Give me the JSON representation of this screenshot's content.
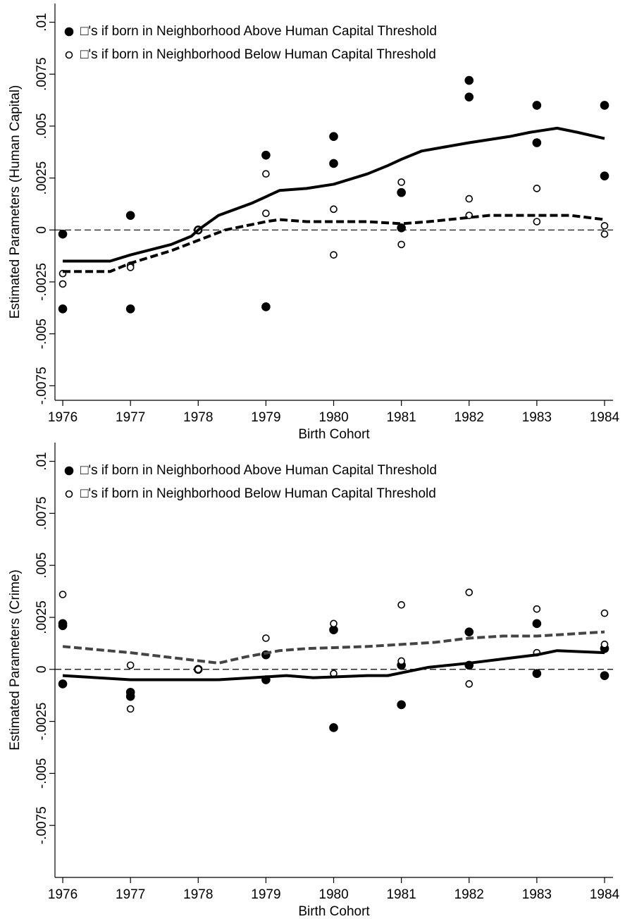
{
  "chart_data": [
    {
      "type": "scatter",
      "y_label": "Estimated Parameters (Human Capital)",
      "x_label": "Birth Cohort",
      "xlim": [
        1975.885,
        1984.125
      ],
      "xticks": [
        1976,
        1977,
        1978,
        1979,
        1980,
        1981,
        1982,
        1983,
        1984
      ],
      "ylim": [
        -0.0082,
        0.0109
      ],
      "yticks": [
        {
          "value": -0.0075,
          "label": "-.0075"
        },
        {
          "value": -0.005,
          "label": "-.005"
        },
        {
          "value": -0.0025,
          "label": "-.0025"
        },
        0,
        {
          "value": 0.0025,
          "label": ".0025"
        },
        {
          "value": 0.005,
          "label": ".005"
        },
        {
          "value": 0.0075,
          "label": ".0075"
        },
        {
          "value": 0.01,
          "label": ".01"
        }
      ],
      "reference_line": 0,
      "legend": "top-left",
      "series": [
        {
          "name": "□'s if born in Neighborhood Above Human Capital Threshold",
          "type": "scatter",
          "marker": "filled",
          "color": "#000000",
          "x": [
            1976,
            1976,
            1977,
            1977,
            1978,
            1979,
            1979,
            1980,
            1980,
            1981,
            1981,
            1982,
            1982,
            1983,
            1983,
            1984,
            1984
          ],
          "values": [
            -0.0002,
            -0.0038,
            0.0007,
            -0.0038,
            0,
            0.0036,
            -0.0037,
            0.0045,
            0.0032,
            0.0018,
            0.0001,
            0.0072,
            0.0064,
            0.006,
            0.0042,
            0.006,
            0.0026
          ]
        },
        {
          "name": "□'s if born in Neighborhood Below Human Capital Threshold",
          "type": "scatter",
          "marker": "open",
          "color": "#000000",
          "x": [
            1976,
            1976,
            1977,
            1977,
            1978,
            1979,
            1979,
            1980,
            1980,
            1981,
            1981,
            1982,
            1982,
            1983,
            1983,
            1984,
            1984
          ],
          "values": [
            -0.0021,
            -0.0026,
            -0.0017,
            -0.0018,
            0,
            0.0027,
            0.0008,
            0.001,
            -0.0012,
            0.0023,
            -0.0007,
            0.0015,
            0.0007,
            0.002,
            0.0004,
            0.0002,
            -0.0002
          ]
        },
        {
          "type": "line",
          "style": "solid",
          "color": "#000000",
          "x": [
            1976,
            1976.7,
            1977,
            1977.6,
            1977.9,
            1978,
            1978.3,
            1978.8,
            1979,
            1979.2,
            1979.6,
            1980,
            1980.5,
            1980.8,
            1981,
            1981.3,
            1982,
            1982.6,
            1982.9,
            1983.1,
            1983.3,
            1983.6,
            1984
          ],
          "values": [
            -0.0015,
            -0.0015,
            -0.0012,
            -0.0007,
            -0.0003,
            0,
            0.0007,
            0.0013,
            0.0016,
            0.0019,
            0.002,
            0.0022,
            0.0027,
            0.0031,
            0.0034,
            0.0038,
            0.0042,
            0.0045,
            0.0047,
            0.0048,
            0.0049,
            0.0047,
            0.0044
          ]
        },
        {
          "type": "line",
          "style": "dashed",
          "color": "#000000",
          "x": [
            1976,
            1976.7,
            1977,
            1977.6,
            1978,
            1978.4,
            1979,
            1979.2,
            1979.6,
            1980,
            1980.5,
            1981,
            1981.4,
            1982,
            1982.3,
            1983,
            1983.5,
            1984
          ],
          "values": [
            -0.002,
            -0.002,
            -0.0016,
            -0.001,
            -0.0005,
            0,
            0.0004,
            0.0005,
            0.0004,
            0.0004,
            0.0004,
            0.0003,
            0.0004,
            0.0006,
            0.0007,
            0.0007,
            0.0007,
            0.0005
          ]
        }
      ]
    },
    {
      "type": "scatter",
      "y_label": "Estimated Parameters (Crime)",
      "x_label": "Birth Cohort",
      "xlim": [
        1975.885,
        1984.125
      ],
      "xticks": [
        1976,
        1977,
        1978,
        1979,
        1980,
        1981,
        1982,
        1983,
        1984
      ],
      "ylim": [
        -0.01,
        0.0109
      ],
      "yticks": [
        {
          "value": -0.0075,
          "label": "-.0075"
        },
        {
          "value": -0.005,
          "label": "-.005"
        },
        {
          "value": -0.0025,
          "label": "-.0025"
        },
        0,
        {
          "value": 0.0025,
          "label": ".0025"
        },
        {
          "value": 0.005,
          "label": ".005"
        },
        {
          "value": 0.0075,
          "label": ".0075"
        },
        {
          "value": 0.01,
          "label": ".01"
        }
      ],
      "reference_line": 0,
      "legend": "top-left",
      "series": [
        {
          "name": "□'s if born in Neighborhood Above Human Capital Threshold",
          "type": "scatter",
          "marker": "filled",
          "color": "#000000",
          "x": [
            1976,
            1976,
            1976,
            1977,
            1977,
            1978,
            1979,
            1979,
            1980,
            1980,
            1981,
            1981,
            1982,
            1982,
            1983,
            1983,
            1984,
            1984
          ],
          "values": [
            0.0021,
            0.0022,
            -0.0007,
            -0.0011,
            -0.0013,
            0,
            0.0007,
            -0.0005,
            0.0019,
            -0.0028,
            0.0002,
            -0.0017,
            0.0018,
            0.0002,
            0.0022,
            -0.0002,
            0.001,
            -0.0003
          ]
        },
        {
          "name": "□'s if born in Neighborhood Below Human Capital Threshold",
          "type": "scatter",
          "marker": "open",
          "color": "#000000",
          "x": [
            1976,
            1977,
            1977,
            1978,
            1979,
            1980,
            1980,
            1981,
            1981,
            1982,
            1982,
            1983,
            1983,
            1984,
            1984
          ],
          "values": [
            0.0036,
            0.0002,
            -0.0019,
            0,
            0.0015,
            0.0022,
            -0.0002,
            0.0031,
            0.0004,
            0.0037,
            -0.0007,
            0.0029,
            0.0008,
            0.0027,
            0.0012
          ]
        },
        {
          "type": "line",
          "style": "solid",
          "color": "#000000",
          "x": [
            1976,
            1977,
            1978.3,
            1978.8,
            1979.3,
            1979.7,
            1980.5,
            1980.8,
            1981.4,
            1982,
            1982.5,
            1983,
            1983.3,
            1984
          ],
          "values": [
            -0.0003,
            -0.0005,
            -0.0005,
            -0.0004,
            -0.0003,
            -0.0004,
            -0.0003,
            -0.0003,
            0.0001,
            0.0003,
            0.0005,
            0.0007,
            0.0009,
            0.0008
          ]
        },
        {
          "type": "line",
          "style": "dashed",
          "color": "#444444",
          "x": [
            1976,
            1977,
            1978.3,
            1978.7,
            1979.2,
            1979.6,
            1980.5,
            1981,
            1981.5,
            1982,
            1982.5,
            1983,
            1984
          ],
          "values": [
            0.0011,
            0.0008,
            0.0003,
            0.0006,
            0.0009,
            0.001,
            0.0011,
            0.0012,
            0.0013,
            0.0015,
            0.0016,
            0.0016,
            0.0018
          ]
        }
      ]
    }
  ]
}
